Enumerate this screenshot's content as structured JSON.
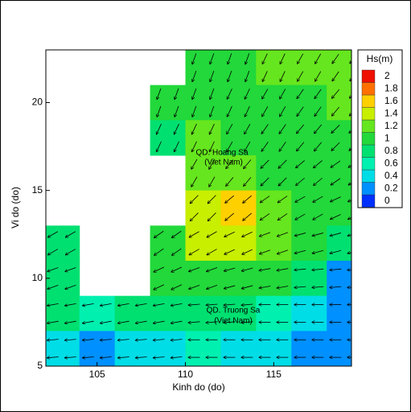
{
  "chart_data": {
    "type": "field",
    "x_label": "Kinh do (do)",
    "y_label": "Vi do (do)",
    "colorbar_title": "Hs(m)",
    "annotations": [
      "QD. Hoang Sa",
      "(Viet Nam)",
      "QD. Truong Sa",
      "(Viet Nam)"
    ],
    "xlim": [
      102.1,
      119.4
    ],
    "ylim": [
      5,
      23
    ],
    "xticks": [
      105,
      110,
      115
    ],
    "yticks": [
      5,
      10,
      15,
      20
    ],
    "x_edges": [
      102,
      104,
      106,
      108,
      110,
      112,
      114,
      116,
      118,
      120
    ],
    "y_edges": [
      23,
      21,
      19,
      17,
      15,
      13,
      11,
      9,
      7,
      5
    ],
    "levels": [
      0,
      0.2,
      0.4,
      0.6,
      0.8,
      1,
      1.2,
      1.4,
      1.6,
      1.8,
      2
    ],
    "level_colors": [
      "#0030ff",
      "#0090ff",
      "#00dde6",
      "#00f0b0",
      "#00e070",
      "#22d83a",
      "#66e61e",
      "#c8ee00",
      "#ffd000",
      "#ff7000",
      "#ee1000"
    ],
    "hs_grid": [
      [
        null,
        null,
        null,
        null,
        1.0,
        1.1,
        1.2,
        1.2,
        1.2
      ],
      [
        null,
        null,
        null,
        1.0,
        1.1,
        1.1,
        1.0,
        1.1,
        1.2
      ],
      [
        null,
        null,
        null,
        0.9,
        1.3,
        1.1,
        1.0,
        1.1,
        1.1
      ],
      [
        null,
        null,
        null,
        null,
        1.3,
        1.2,
        1.1,
        1.0,
        1.1
      ],
      [
        null,
        null,
        null,
        null,
        1.4,
        1.6,
        1.2,
        1.0,
        1.0
      ],
      [
        0.9,
        null,
        null,
        1.1,
        1.4,
        1.4,
        1.2,
        1.0,
        0.9
      ],
      [
        0.9,
        null,
        null,
        1.0,
        1.1,
        1.1,
        1.0,
        0.8,
        0.3
      ],
      [
        0.8,
        0.7,
        0.8,
        0.9,
        0.9,
        0.8,
        0.7,
        0.5,
        0.3
      ],
      [
        0.4,
        0.3,
        0.5,
        0.5,
        0.6,
        0.5,
        0.5,
        0.2,
        0.2
      ]
    ],
    "arrow_directions": [
      [
        null,
        null,
        null,
        null,
        200,
        200,
        205,
        210,
        215
      ],
      [
        null,
        null,
        null,
        200,
        200,
        205,
        210,
        215,
        220
      ],
      [
        null,
        null,
        null,
        205,
        205,
        210,
        215,
        220,
        225
      ],
      [
        null,
        null,
        null,
        null,
        210,
        220,
        225,
        230,
        235
      ],
      [
        null,
        null,
        null,
        null,
        225,
        230,
        235,
        240,
        245
      ],
      [
        240,
        null,
        null,
        235,
        240,
        245,
        250,
        255,
        255
      ],
      [
        250,
        null,
        null,
        245,
        250,
        255,
        260,
        265,
        265
      ],
      [
        260,
        260,
        260,
        260,
        265,
        265,
        270,
        270,
        270
      ],
      [
        265,
        265,
        265,
        265,
        270,
        270,
        270,
        270,
        270
      ]
    ]
  }
}
